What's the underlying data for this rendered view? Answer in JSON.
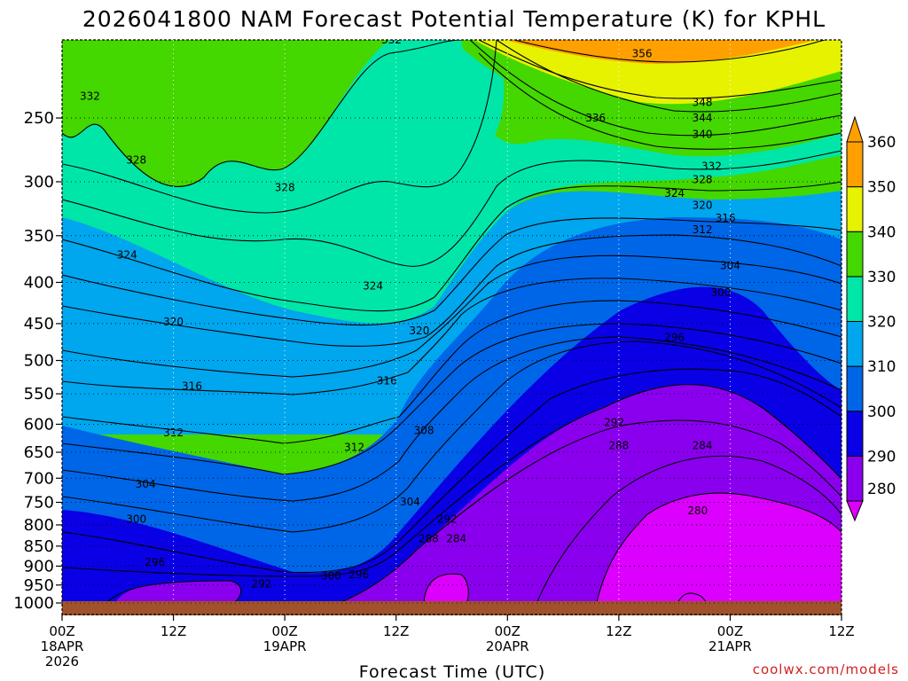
{
  "chart_data": {
    "type": "heatmap",
    "title": "2026041800 NAM Forecast Potential Temperature (K) for KPHL",
    "xlabel": "Forecast Time (UTC)",
    "ylabel": "",
    "ylim": [
      1000,
      200
    ],
    "y_ticks": [
      "250",
      "300",
      "350",
      "400",
      "450",
      "500",
      "550",
      "600",
      "650",
      "700",
      "750",
      "800",
      "850",
      "900",
      "950",
      "1000"
    ],
    "x_ticks": [
      {
        "hour": 0,
        "line1": "00Z",
        "line2": "18APR",
        "line3": "2026"
      },
      {
        "hour": 12,
        "line1": "12Z",
        "line2": "",
        "line3": ""
      },
      {
        "hour": 24,
        "line1": "00Z",
        "line2": "19APR",
        "line3": ""
      },
      {
        "hour": 36,
        "line1": "12Z",
        "line2": "",
        "line3": ""
      },
      {
        "hour": 48,
        "line1": "00Z",
        "line2": "20APR",
        "line3": ""
      },
      {
        "hour": 60,
        "line1": "12Z",
        "line2": "",
        "line3": ""
      },
      {
        "hour": 72,
        "line1": "00Z",
        "line2": "21APR",
        "line3": ""
      },
      {
        "hour": 84,
        "line1": "12Z",
        "line2": "",
        "line3": ""
      }
    ],
    "colorbar": {
      "levels": [
        "280",
        "290",
        "300",
        "310",
        "320",
        "330",
        "340",
        "350",
        "360"
      ],
      "colors": [
        "#dc00ff",
        "#8a00ee",
        "#0a00e6",
        "#0066e8",
        "#00a6ee",
        "#00e6a8",
        "#44d700",
        "#e6f200",
        "#ffa000"
      ]
    },
    "contour_labels": [
      {
        "text": "332",
        "h": 35.5,
        "p": 200
      },
      {
        "text": "332",
        "h": 3,
        "p": 235
      },
      {
        "text": "328",
        "h": 8,
        "p": 282
      },
      {
        "text": "328",
        "h": 24,
        "p": 305
      },
      {
        "text": "324",
        "h": 7,
        "p": 370
      },
      {
        "text": "324",
        "h": 33.5,
        "p": 404
      },
      {
        "text": "320",
        "h": 12,
        "p": 448
      },
      {
        "text": "320",
        "h": 38.5,
        "p": 459
      },
      {
        "text": "316",
        "h": 14,
        "p": 538
      },
      {
        "text": "316",
        "h": 35,
        "p": 530
      },
      {
        "text": "312",
        "h": 12,
        "p": 615
      },
      {
        "text": "312",
        "h": 31.5,
        "p": 641
      },
      {
        "text": "308",
        "h": 39,
        "p": 611
      },
      {
        "text": "304",
        "h": 9,
        "p": 712
      },
      {
        "text": "304",
        "h": 37.5,
        "p": 749
      },
      {
        "text": "300",
        "h": 8,
        "p": 787
      },
      {
        "text": "296",
        "h": 10,
        "p": 890
      },
      {
        "text": "292",
        "h": 21.5,
        "p": 947
      },
      {
        "text": "300",
        "h": 29,
        "p": 926
      },
      {
        "text": "296",
        "h": 32,
        "p": 922
      },
      {
        "text": "292",
        "h": 41.5,
        "p": 787
      },
      {
        "text": "288",
        "h": 39.5,
        "p": 832
      },
      {
        "text": "284",
        "h": 42.5,
        "p": 832
      },
      {
        "text": "336",
        "h": 57.5,
        "p": 250
      },
      {
        "text": "356",
        "h": 62.5,
        "p": 208
      },
      {
        "text": "348",
        "h": 69,
        "p": 239
      },
      {
        "text": "344",
        "h": 69,
        "p": 250
      },
      {
        "text": "340",
        "h": 69,
        "p": 262
      },
      {
        "text": "332",
        "h": 70,
        "p": 287
      },
      {
        "text": "328",
        "h": 69,
        "p": 298
      },
      {
        "text": "324",
        "h": 66,
        "p": 310
      },
      {
        "text": "320",
        "h": 69,
        "p": 321
      },
      {
        "text": "316",
        "h": 71.5,
        "p": 333
      },
      {
        "text": "312",
        "h": 69,
        "p": 344
      },
      {
        "text": "304",
        "h": 72,
        "p": 381
      },
      {
        "text": "300",
        "h": 71,
        "p": 412
      },
      {
        "text": "296",
        "h": 66,
        "p": 468
      },
      {
        "text": "292",
        "h": 59.5,
        "p": 597
      },
      {
        "text": "288",
        "h": 60,
        "p": 638
      },
      {
        "text": "284",
        "h": 69,
        "p": 638
      },
      {
        "text": "280",
        "h": 68.5,
        "p": 768
      }
    ]
  },
  "footer": {
    "credit": "coolwx.com/models"
  }
}
